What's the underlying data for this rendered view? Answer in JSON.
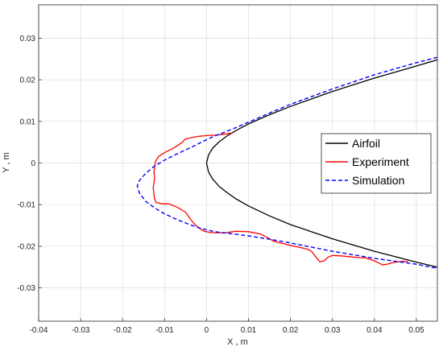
{
  "chart_data": {
    "type": "line",
    "xlabel": "X , m",
    "ylabel": "Y , m",
    "xlim": [
      -0.04,
      0.055
    ],
    "ylim": [
      -0.038,
      0.038
    ],
    "xticks": [
      -0.04,
      -0.03,
      -0.02,
      -0.01,
      0,
      0.01,
      0.02,
      0.03,
      0.04,
      0.05
    ],
    "xtick_labels": [
      "-0.04",
      "-0.03",
      "-0.02",
      "-0.01",
      "0",
      "0.01",
      "0.02",
      "0.03",
      "0.04",
      "0.05"
    ],
    "yticks": [
      -0.03,
      -0.02,
      -0.01,
      0,
      0.01,
      0.02,
      0.03
    ],
    "ytick_labels": [
      "-0.03",
      "-0.02",
      "-0.01",
      "0",
      "0.01",
      "0.02",
      "0.03"
    ],
    "grid": true,
    "legend_position": "right",
    "series": [
      {
        "name": "Airfoil",
        "color": "#000000",
        "style": "solid",
        "x": [
          0.055,
          0.05,
          0.04,
          0.03,
          0.02,
          0.015,
          0.01,
          0.007,
          0.005,
          0.003,
          0.0015,
          0.0005,
          0.0,
          0.0005,
          0.0015,
          0.003,
          0.005,
          0.007,
          0.01,
          0.015,
          0.02,
          0.03,
          0.04,
          0.05,
          0.055
        ],
        "y": [
          0.0248,
          0.0233,
          0.0204,
          0.0172,
          0.0136,
          0.0116,
          0.0094,
          0.0078,
          0.0066,
          0.0051,
          0.0036,
          0.002,
          0.0,
          -0.0022,
          -0.0039,
          -0.0056,
          -0.0072,
          -0.0086,
          -0.0103,
          -0.0127,
          -0.0148,
          -0.0182,
          -0.0212,
          -0.0238,
          -0.025
        ]
      },
      {
        "name": "Experiment",
        "color": "#ff0000",
        "style": "solid",
        "x": [
          0.006,
          0.004,
          0.002,
          0.0,
          -0.002,
          -0.003,
          -0.004,
          -0.005,
          -0.006,
          -0.008,
          -0.01,
          -0.0115,
          -0.0122,
          -0.0125,
          -0.0124,
          -0.0127,
          -0.0124,
          -0.012,
          -0.0105,
          -0.009,
          -0.007,
          -0.005,
          -0.004,
          -0.003,
          -0.002,
          -0.0005,
          0.001,
          0.004,
          0.007,
          0.01,
          0.013,
          0.015,
          0.016,
          0.018,
          0.02,
          0.022,
          0.024,
          0.025,
          0.026,
          0.027,
          0.028,
          0.029,
          0.03,
          0.032,
          0.034,
          0.036,
          0.038,
          0.04,
          0.041,
          0.042,
          0.043,
          0.044,
          0.045,
          0.046,
          0.047,
          0.048
        ],
        "y": [
          0.0072,
          0.0069,
          0.0067,
          0.0066,
          0.0064,
          0.0062,
          0.006,
          0.0058,
          0.0048,
          0.0035,
          0.0025,
          0.0015,
          0.0003,
          -0.002,
          -0.004,
          -0.006,
          -0.0085,
          -0.0095,
          -0.0098,
          -0.0098,
          -0.0106,
          -0.0118,
          -0.0133,
          -0.0145,
          -0.0155,
          -0.0164,
          -0.0167,
          -0.0168,
          -0.0164,
          -0.0165,
          -0.0171,
          -0.0182,
          -0.0188,
          -0.0193,
          -0.0198,
          -0.0202,
          -0.0207,
          -0.0212,
          -0.0225,
          -0.0237,
          -0.0235,
          -0.0226,
          -0.0222,
          -0.0223,
          -0.0225,
          -0.0227,
          -0.0228,
          -0.0235,
          -0.024,
          -0.0245,
          -0.0243,
          -0.024,
          -0.0238,
          -0.0237,
          -0.0236,
          -0.0237
        ]
      },
      {
        "name": "Simulation",
        "color": "#0000ff",
        "style": "dashed",
        "x": [
          0.055,
          0.05,
          0.04,
          0.03,
          0.02,
          0.015,
          0.01,
          0.007,
          0.004,
          0.0015,
          -0.001,
          -0.004,
          -0.007,
          -0.01,
          -0.0125,
          -0.0145,
          -0.016,
          -0.0165,
          -0.016,
          -0.0145,
          -0.0125,
          -0.01,
          -0.007,
          -0.004,
          -0.001,
          0.002,
          0.006,
          0.01,
          0.015,
          0.02,
          0.03,
          0.04,
          0.05,
          0.055
        ],
        "y": [
          0.0254,
          0.0241,
          0.0212,
          0.0178,
          0.0141,
          0.012,
          0.0098,
          0.0085,
          0.0073,
          0.0063,
          0.0051,
          0.0036,
          0.0022,
          0.0007,
          -0.0008,
          -0.0025,
          -0.0042,
          -0.0055,
          -0.0072,
          -0.0092,
          -0.0107,
          -0.0122,
          -0.0136,
          -0.0148,
          -0.0158,
          -0.0165,
          -0.017,
          -0.0175,
          -0.0183,
          -0.0192,
          -0.0212,
          -0.0229,
          -0.0243,
          -0.0253
        ]
      }
    ]
  }
}
